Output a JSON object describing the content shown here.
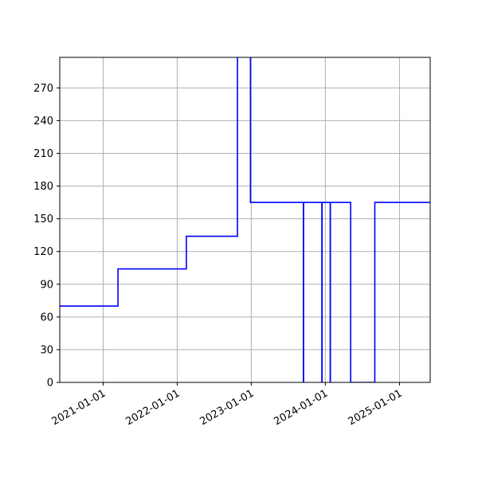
{
  "chart_data": {
    "type": "line",
    "title": "",
    "xlabel": "",
    "ylabel": "",
    "step": "post",
    "grid": true,
    "x_axis_type": "date",
    "xlim": [
      "2020-06-01",
      "2025-06-01"
    ],
    "ylim": [
      0,
      298
    ],
    "x_ticks": [
      "2021-01-01",
      "2022-01-01",
      "2023-01-01",
      "2024-01-01",
      "2025-01-01"
    ],
    "y_ticks": [
      0,
      30,
      60,
      90,
      120,
      150,
      180,
      210,
      240,
      270
    ],
    "series": [
      {
        "color": "#0000ff",
        "points": [
          {
            "x": "2020-06-01",
            "y": 70
          },
          {
            "x": "2021-03-15",
            "y": 104
          },
          {
            "x": "2022-02-15",
            "y": 134
          },
          {
            "x": "2022-10-25",
            "y": 330
          },
          {
            "x": "2022-12-28",
            "y": 165
          },
          {
            "x": "2023-09-15",
            "y": 0
          },
          {
            "x": "2023-09-16",
            "y": 165
          },
          {
            "x": "2023-12-15",
            "y": 0
          },
          {
            "x": "2023-12-16",
            "y": 165
          },
          {
            "x": "2024-01-25",
            "y": 0
          },
          {
            "x": "2024-01-26",
            "y": 165
          },
          {
            "x": "2024-05-05",
            "y": 0
          },
          {
            "x": "2024-09-01",
            "y": 165
          },
          {
            "x": "2025-06-01",
            "y": 165
          }
        ]
      }
    ]
  }
}
